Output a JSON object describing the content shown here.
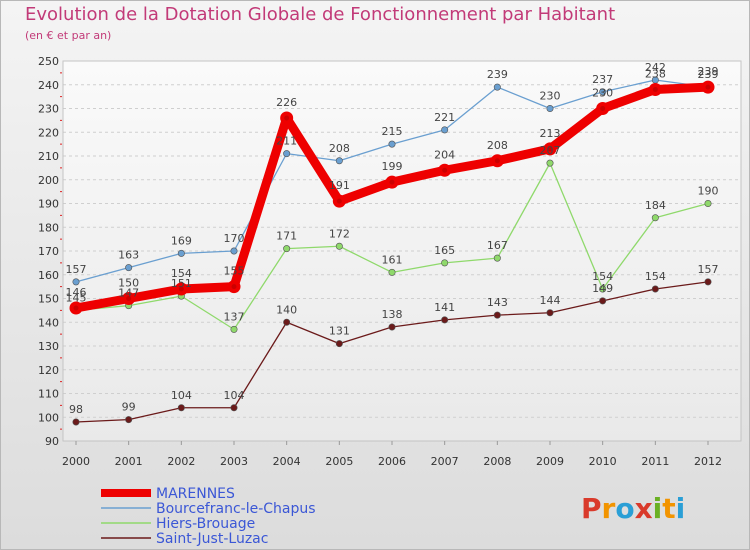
{
  "header": {
    "title": "Evolution de la Dotation Globale de Fonctionnement par Habitant",
    "subtitle": "(en € et par an)"
  },
  "logo": {
    "text": "Proxiti",
    "letters": [
      {
        "ch": "P",
        "color": "#d93a2b"
      },
      {
        "ch": "r",
        "color": "#f29400"
      },
      {
        "ch": "o",
        "color": "#2a9fd6"
      },
      {
        "ch": "x",
        "color": "#d93a2b"
      },
      {
        "ch": "i",
        "color": "#6ab023"
      },
      {
        "ch": "t",
        "color": "#f29400"
      },
      {
        "ch": "i",
        "color": "#2a9fd6"
      }
    ]
  },
  "chart_data": {
    "type": "line",
    "title": "Evolution de la Dotation Globale de Fonctionnement par Habitant",
    "subtitle": "(en € et par an)",
    "xlabel": "",
    "ylabel": "",
    "ylim": [
      90,
      250
    ],
    "ytick_step": 10,
    "grid": true,
    "categories": [
      "2000",
      "2001",
      "2002",
      "2003",
      "2004",
      "2005",
      "2006",
      "2007",
      "2008",
      "2009",
      "2010",
      "2011",
      "2012"
    ],
    "series": [
      {
        "name": "Saint-Just-Luzac",
        "color": "#6b1a1a",
        "values": [
          98,
          99,
          104,
          104,
          140,
          131,
          138,
          141,
          143,
          144,
          149,
          154,
          157
        ]
      },
      {
        "name": "Hiers-Brouage",
        "color": "#8fd96b",
        "values": [
          145,
          147,
          151,
          137,
          171,
          172,
          161,
          165,
          167,
          207,
          154,
          184,
          190
        ]
      },
      {
        "name": "Bourcefranc-le-Chapus",
        "color": "#6a9fd0",
        "values": [
          157,
          163,
          169,
          170,
          211,
          208,
          215,
          221,
          239,
          230,
          237,
          242,
          239
        ]
      },
      {
        "name": "MARENNES",
        "color": "#ee0000",
        "values": [
          146,
          150,
          154,
          155,
          226,
          191,
          199,
          204,
          208,
          213,
          230,
          238,
          239
        ]
      }
    ],
    "legend_order": [
      "MARENNES",
      "Bourcefranc-le-Chapus",
      "Hiers-Brouage",
      "Saint-Just-Luzac"
    ],
    "legend_position": "bottom-left"
  }
}
